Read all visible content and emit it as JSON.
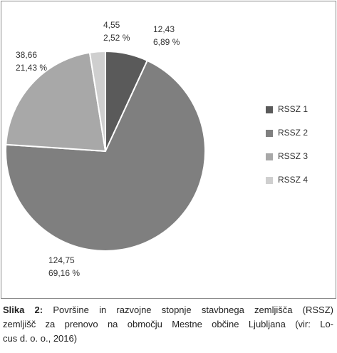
{
  "chart_data": {
    "type": "pie",
    "categories": [
      "RSSZ 1",
      "RSSZ 2",
      "RSSZ 3",
      "RSSZ 4"
    ],
    "values": [
      12.43,
      124.75,
      38.66,
      4.55
    ],
    "value_labels": [
      "12,43",
      "124,75",
      "38,66",
      "4,55"
    ],
    "shares": [
      6.89,
      69.16,
      21.43,
      2.52
    ],
    "share_labels": [
      "6,89 %",
      "69,16 %",
      "21,43 %",
      "2,52 %"
    ],
    "colors": [
      "#5a5a5a",
      "#7f7f7f",
      "#a8a8a8",
      "#cfcfcf"
    ],
    "legend": "right"
  },
  "caption": {
    "label": "Slika 2:",
    "lines": [
      "Površine in razvojne stopnje stavbnega zemljišča (RSSZ)",
      "zemljišč za prenovo na območju Mestne občine Ljubljana (vir: Lo-",
      "cus d. o. o., 2016)"
    ]
  }
}
